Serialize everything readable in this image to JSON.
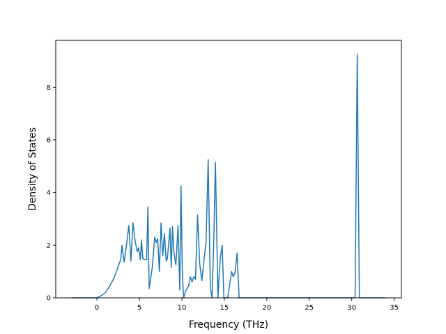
{
  "chart_data": {
    "type": "line",
    "title": "",
    "xlabel": "Frequency (THz)",
    "ylabel": "Density of States",
    "xlim": [
      -4.85,
      35.85
    ],
    "ylim": [
      0,
      9.78
    ],
    "xticks": [
      0,
      5,
      10,
      15,
      20,
      25,
      30,
      35
    ],
    "yticks": [
      0,
      2,
      4,
      6,
      8
    ],
    "grid": false,
    "legend": "none",
    "colors": {
      "line": "#1f77b4",
      "axes": "#000000",
      "background": "#ffffff"
    },
    "series": [
      {
        "x": [
          -3.0,
          0.0,
          0.5,
          1.0,
          1.5,
          2.0,
          2.4,
          2.8,
          2.95,
          3.2,
          3.5,
          3.75,
          4.0,
          4.25,
          4.5,
          4.75,
          4.9,
          5.1,
          5.25,
          5.4,
          5.6,
          5.85,
          6.0,
          6.15,
          6.5,
          6.8,
          7.0,
          7.15,
          7.35,
          7.55,
          7.75,
          7.95,
          8.15,
          8.3,
          8.6,
          8.75,
          8.9,
          9.05,
          9.3,
          9.55,
          9.75,
          9.9,
          10.05,
          10.2,
          10.5,
          10.8,
          11.0,
          11.2,
          11.4,
          11.6,
          11.85,
          12.1,
          12.35,
          12.6,
          12.85,
          13.1,
          13.35,
          13.55,
          13.75,
          13.95,
          14.25,
          14.4,
          14.55,
          14.75,
          14.95,
          15.2,
          15.4,
          15.85,
          16.05,
          16.25,
          16.5,
          16.75,
          16.95,
          17.2,
          20.0,
          25.0,
          30.0,
          30.4,
          30.65,
          30.9,
          31.2,
          34.0
        ],
        "y": [
          0.0,
          0.0,
          0.08,
          0.2,
          0.45,
          0.75,
          1.1,
          1.45,
          2.0,
          1.35,
          2.05,
          2.75,
          1.4,
          2.85,
          2.15,
          1.75,
          1.9,
          1.45,
          2.2,
          1.5,
          1.45,
          1.45,
          3.45,
          0.35,
          1.1,
          2.3,
          2.1,
          2.25,
          1.0,
          2.85,
          1.6,
          2.45,
          1.4,
          1.5,
          2.65,
          1.15,
          2.7,
          1.75,
          1.25,
          2.75,
          0.3,
          4.25,
          1.05,
          0.0,
          0.3,
          0.45,
          0.8,
          0.6,
          0.8,
          0.7,
          3.15,
          1.3,
          0.65,
          1.4,
          2.15,
          5.25,
          0.4,
          0.0,
          2.05,
          5.15,
          0.0,
          0.95,
          1.55,
          2.0,
          0.0,
          0.0,
          0.0,
          1.0,
          0.8,
          0.95,
          1.7,
          0.0,
          0.0,
          0.0,
          0.0,
          0.0,
          0.0,
          0.0,
          9.25,
          0.0,
          0.0,
          0.0
        ]
      }
    ]
  }
}
